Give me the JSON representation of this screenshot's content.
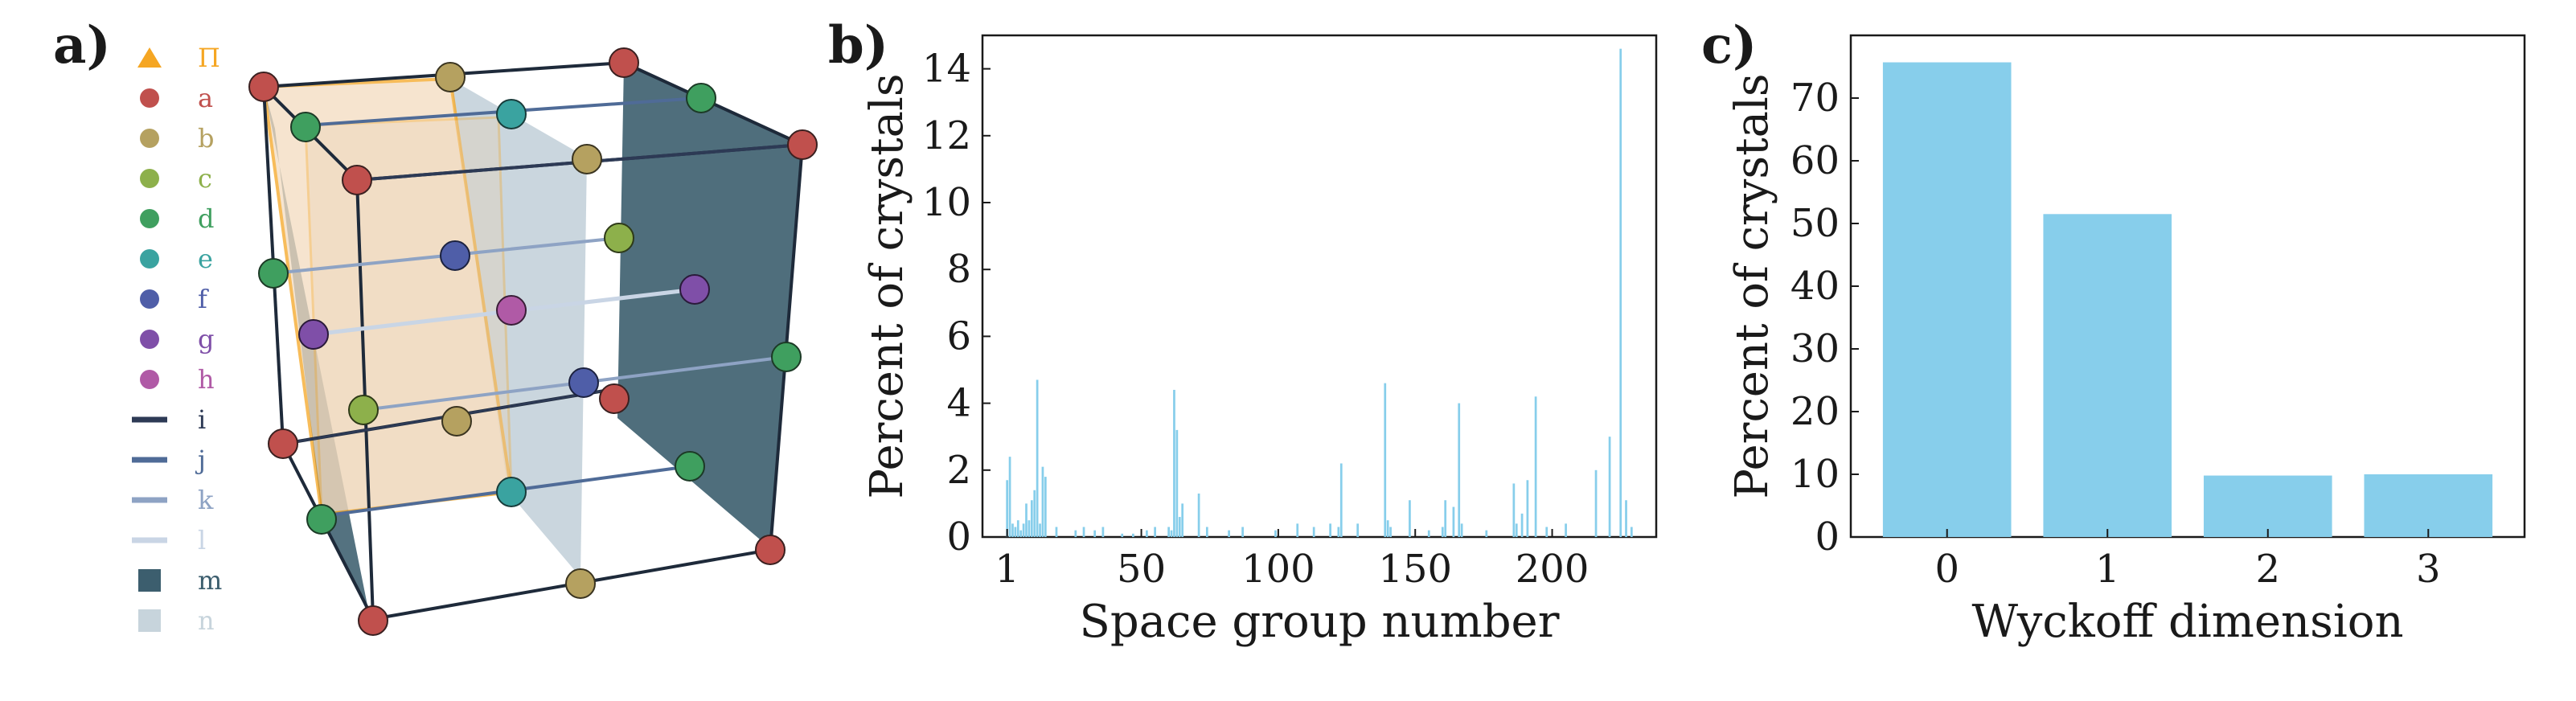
{
  "panel_labels": {
    "a": "a)",
    "b": "b)",
    "c": "c)"
  },
  "legend": {
    "items": [
      {
        "label": "Π",
        "marker": "triangle",
        "color": "#f5a623"
      },
      {
        "label": "a",
        "marker": "circle",
        "color": "#c0504d"
      },
      {
        "label": "b",
        "marker": "circle",
        "color": "#b5a160"
      },
      {
        "label": "c",
        "marker": "circle",
        "color": "#8db04b"
      },
      {
        "label": "d",
        "marker": "circle",
        "color": "#3f9f5f"
      },
      {
        "label": "e",
        "marker": "circle",
        "color": "#3aa3a0"
      },
      {
        "label": "f",
        "marker": "circle",
        "color": "#4f5ea8"
      },
      {
        "label": "g",
        "marker": "circle",
        "color": "#7f4fa8"
      },
      {
        "label": "h",
        "marker": "circle",
        "color": "#b05aa6"
      },
      {
        "label": "i",
        "marker": "line",
        "color": "#2d3a55"
      },
      {
        "label": "j",
        "marker": "line",
        "color": "#4f6b97"
      },
      {
        "label": "k",
        "marker": "line",
        "color": "#8ea3c4"
      },
      {
        "label": "l",
        "marker": "line",
        "color": "#c9d5e5"
      },
      {
        "label": "m",
        "marker": "square",
        "color": "#3c5e6e"
      },
      {
        "label": "n",
        "marker": "square",
        "color": "#c7d4dc"
      }
    ]
  },
  "chart_data": [
    {
      "type": "bar",
      "title": "",
      "xlabel": "Space group number",
      "ylabel": "Percent of crystals",
      "xlim": [
        -8,
        238
      ],
      "ylim": [
        0,
        15
      ],
      "xticks": [
        1,
        50,
        100,
        150,
        200
      ],
      "yticks": [
        0,
        2,
        4,
        6,
        8,
        10,
        12,
        14
      ],
      "color": "#87ceeb",
      "x": [
        1,
        2,
        3,
        4,
        5,
        6,
        7,
        8,
        9,
        10,
        11,
        12,
        13,
        14,
        15,
        19,
        26,
        29,
        33,
        36,
        43,
        47,
        52,
        55,
        60,
        61,
        62,
        63,
        64,
        65,
        71,
        74,
        82,
        87,
        99,
        107,
        113,
        119,
        122,
        123,
        129,
        139,
        140,
        141,
        148,
        155,
        160,
        161,
        164,
        166,
        167,
        176,
        186,
        187,
        189,
        191,
        194,
        198,
        205,
        216,
        221,
        225,
        227,
        229
      ],
      "values": [
        1.7,
        2.4,
        0.4,
        0.3,
        0.5,
        0.2,
        0.4,
        1.0,
        0.5,
        1.1,
        1.4,
        4.7,
        0.4,
        2.1,
        1.8,
        0.3,
        0.2,
        0.3,
        0.2,
        0.3,
        0.1,
        0.1,
        0.2,
        0.3,
        0.3,
        0.2,
        4.4,
        3.2,
        0.6,
        1.0,
        1.3,
        0.3,
        0.2,
        0.3,
        0.2,
        0.4,
        0.3,
        0.4,
        0.3,
        2.2,
        0.4,
        4.6,
        0.5,
        0.3,
        1.1,
        0.2,
        0.3,
        1.1,
        0.9,
        4.0,
        0.4,
        0.2,
        1.6,
        0.4,
        0.7,
        1.7,
        4.2,
        0.3,
        0.4,
        2.0,
        3.0,
        14.6,
        1.1,
        0.3
      ]
    },
    {
      "type": "bar",
      "title": "",
      "xlabel": "Wyckoff dimension",
      "ylabel": "Percent of crystals",
      "ylim": [
        0,
        80
      ],
      "yticks": [
        0,
        10,
        20,
        30,
        40,
        50,
        60,
        70
      ],
      "color": "#87ceeb",
      "categories": [
        "0",
        "1",
        "2",
        "3"
      ],
      "values": [
        75.7,
        51.5,
        9.8,
        10.0
      ]
    }
  ]
}
